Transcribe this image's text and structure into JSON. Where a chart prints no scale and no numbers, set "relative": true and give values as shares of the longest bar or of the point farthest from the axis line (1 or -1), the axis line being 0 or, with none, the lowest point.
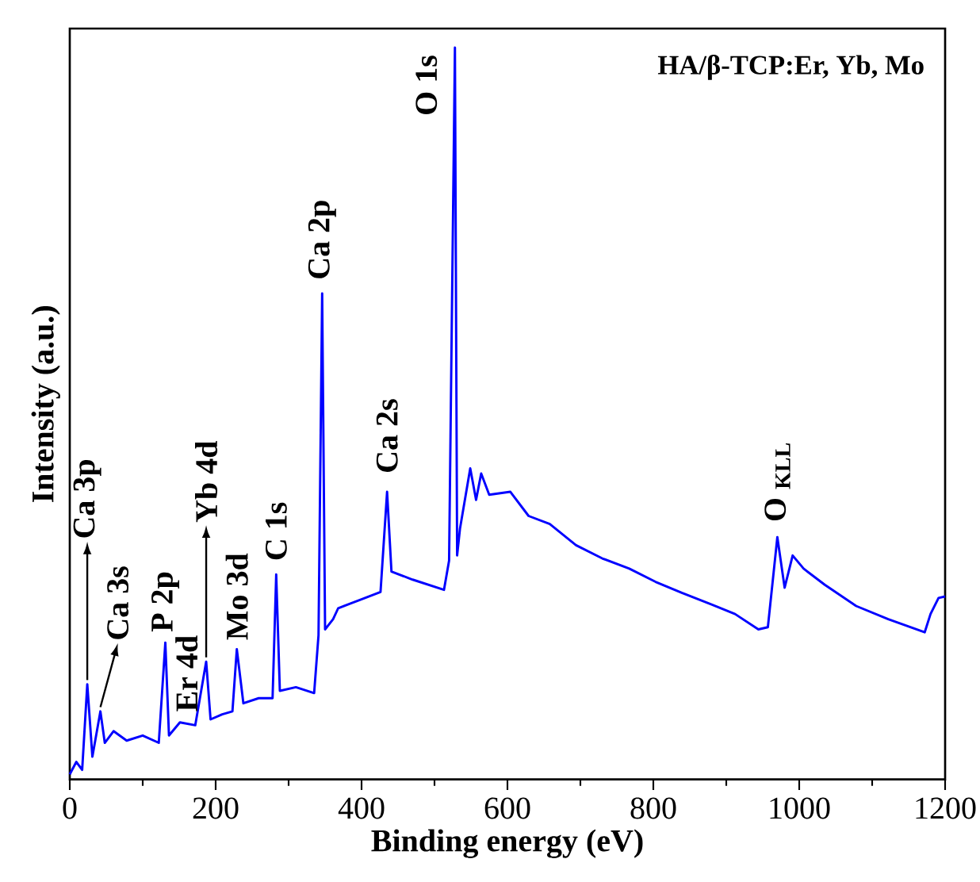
{
  "chart_data": {
    "type": "line",
    "title": "HA/β-TCP:Er, Yb, Mo",
    "xlabel": "Binding energy (eV)",
    "ylabel": "Intensity (a.u.)",
    "relative": true,
    "xlim": [
      0,
      1200
    ],
    "xticks": [
      0,
      {
        "value": 100,
        "label": null
      },
      200,
      {
        "value": 300,
        "label": null
      },
      400,
      {
        "value": 500,
        "label": null
      },
      600,
      {
        "value": 700,
        "label": null
      },
      800,
      {
        "value": 900,
        "label": null
      },
      1000,
      {
        "value": 1100,
        "label": null
      },
      1200
    ],
    "x": [
      0,
      9,
      17,
      24,
      31,
      42,
      48,
      60,
      78,
      100,
      122,
      131,
      136,
      151,
      172,
      187,
      193,
      209,
      223,
      229,
      238,
      259,
      278,
      283,
      288,
      310,
      335,
      341,
      346,
      350,
      361,
      368,
      397,
      426,
      435,
      441,
      470,
      513,
      520,
      528,
      531,
      535,
      549,
      557,
      564,
      575,
      604,
      629,
      658,
      694,
      730,
      767,
      803,
      839,
      875,
      912,
      944,
      957,
      970,
      980,
      991,
      1006,
      1035,
      1078,
      1122,
      1172,
      1180,
      1191,
      1200
    ],
    "series": [
      {
        "color": "#0000ff",
        "values": [
          0.007,
          0.024,
          0.013,
          0.13,
          0.031,
          0.093,
          0.05,
          0.066,
          0.053,
          0.06,
          0.05,
          0.187,
          0.06,
          0.078,
          0.074,
          0.161,
          0.082,
          0.089,
          0.093,
          0.178,
          0.104,
          0.111,
          0.111,
          0.28,
          0.121,
          0.126,
          0.118,
          0.197,
          0.664,
          0.205,
          0.219,
          0.234,
          0.245,
          0.256,
          0.393,
          0.284,
          0.273,
          0.259,
          0.299,
          1.0,
          0.306,
          0.343,
          0.425,
          0.382,
          0.418,
          0.389,
          0.393,
          0.36,
          0.349,
          0.32,
          0.302,
          0.288,
          0.27,
          0.255,
          0.241,
          0.226,
          0.205,
          0.208,
          0.331,
          0.262,
          0.306,
          0.288,
          0.266,
          0.237,
          0.219,
          0.201,
          0.226,
          0.248,
          0.25
        ]
      }
    ],
    "annotations": [
      {
        "text": "Ca 3p",
        "x": 24,
        "y": 0.13
      },
      {
        "text": "Ca 3s",
        "x": 42,
        "y": 0.093
      },
      {
        "text": "P 2p",
        "x": 131,
        "y": 0.187
      },
      {
        "text": "Er 4d",
        "x": 160,
        "y": 0.078
      },
      {
        "text": "Yb 4d",
        "x": 187,
        "y": 0.161
      },
      {
        "text": "Mo 3d",
        "x": 229,
        "y": 0.178
      },
      {
        "text": "C 1s",
        "x": 283,
        "y": 0.28
      },
      {
        "text": "Ca 2p",
        "x": 346,
        "y": 0.664
      },
      {
        "text": "Ca 2s",
        "x": 435,
        "y": 0.393
      },
      {
        "text": "O 1s",
        "x": 528,
        "y": 1.0
      },
      {
        "text": "O $_{KLL}$",
        "x": 970,
        "y": 0.331
      }
    ]
  }
}
